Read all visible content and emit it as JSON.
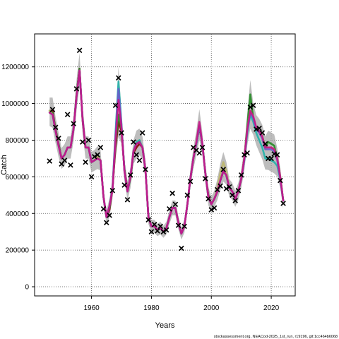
{
  "chart_data": {
    "type": "line",
    "title": "",
    "xlabel": "Years",
    "ylabel": "Catch",
    "xlim": [
      1941,
      2028
    ],
    "ylim": [
      -50000,
      1380000
    ],
    "x_ticks": [
      1960,
      1980,
      2000,
      2020
    ],
    "y_ticks": [
      0,
      200000,
      400000,
      600000,
      800000,
      1000000,
      1200000
    ],
    "x_tick_labels": [
      "1960",
      "1980",
      "2000",
      "2020"
    ],
    "y_tick_labels": [
      "0",
      "200000",
      "400000",
      "600000",
      "800000",
      "1000000",
      "1200000"
    ],
    "grid": "dotted",
    "source_note": "stockassessment.org, NEACod-2025_1st_run, r19196, git:1cc464b6068",
    "observed": {
      "marker": "x",
      "x": [
        1946,
        1947,
        1948,
        1949,
        1950,
        1951,
        1952,
        1953,
        1954,
        1955,
        1956,
        1957,
        1958,
        1959,
        1960,
        1961,
        1962,
        1963,
        1964,
        1965,
        1966,
        1967,
        1968,
        1969,
        1970,
        1971,
        1972,
        1973,
        1974,
        1975,
        1976,
        1977,
        1978,
        1979,
        1980,
        1981,
        1982,
        1983,
        1984,
        1985,
        1986,
        1987,
        1988,
        1989,
        1990,
        1991,
        1992,
        1993,
        1994,
        1995,
        1996,
        1997,
        1998,
        1999,
        2000,
        2001,
        2002,
        2003,
        2004,
        2005,
        2006,
        2007,
        2008,
        2009,
        2010,
        2011,
        2012,
        2013,
        2014,
        2015,
        2016,
        2017,
        2018,
        2019,
        2020,
        2021,
        2022,
        2023,
        2024
      ],
      "y": [
        686000,
        967000,
        870000,
        810000,
        670000,
        690000,
        940000,
        664000,
        890000,
        1080000,
        1290000,
        790000,
        680000,
        800000,
        600000,
        710000,
        720000,
        760000,
        425000,
        350000,
        390000,
        525000,
        990000,
        1140000,
        840000,
        555000,
        475000,
        610000,
        790000,
        720000,
        690000,
        840000,
        640000,
        365000,
        300000,
        340000,
        305000,
        330000,
        300000,
        310000,
        425000,
        510000,
        450000,
        335000,
        210000,
        330000,
        500000,
        575000,
        760000,
        745000,
        730000,
        760000,
        590000,
        480000,
        420000,
        430000,
        530000,
        550000,
        640000,
        535000,
        545000,
        500000,
        470000,
        525000,
        610000,
        720000,
        730000,
        980000,
        990000,
        860000,
        865000,
        840000,
        780000,
        700000,
        700000,
        725000,
        720000,
        580000,
        455000
      ]
    },
    "series": [
      {
        "color": "#8b0000",
        "values": [
          960000,
          960000,
          860000,
          780000,
          700000,
          720000,
          760000,
          760000,
          860000,
          1050000,
          1190000,
          910000,
          760000,
          760000,
          680000,
          690000,
          710000,
          690000,
          490000,
          380000,
          420000,
          530000,
          760000,
          900000,
          850000,
          640000,
          530000,
          590000,
          730000,
          760000,
          780000,
          760000,
          640000,
          380000,
          330000,
          330000,
          310000,
          320000,
          300000,
          320000,
          380000,
          430000,
          430000,
          350000,
          290000,
          330000,
          450000,
          590000,
          700000,
          780000,
          870000,
          780000,
          620000,
          500000,
          450000,
          480000,
          520000,
          580000,
          630000,
          610000,
          540000,
          520000,
          480000,
          520000,
          590000,
          700000,
          860000,
          960000,
          920000,
          860000,
          840000,
          820000,
          760000,
          760000,
          760000,
          750000,
          700000,
          600000,
          470000
        ]
      },
      {
        "color": "#228b22",
        "values": [
          960000,
          950000,
          860000,
          780000,
          700000,
          720000,
          760000,
          760000,
          860000,
          1050000,
          1190000,
          920000,
          760000,
          760000,
          680000,
          690000,
          710000,
          690000,
          490000,
          380000,
          430000,
          530000,
          780000,
          940000,
          860000,
          640000,
          520000,
          590000,
          740000,
          780000,
          790000,
          760000,
          640000,
          380000,
          330000,
          330000,
          310000,
          320000,
          300000,
          320000,
          380000,
          430000,
          430000,
          350000,
          290000,
          330000,
          450000,
          590000,
          700000,
          780000,
          880000,
          780000,
          620000,
          490000,
          450000,
          480000,
          520000,
          580000,
          630000,
          610000,
          540000,
          520000,
          480000,
          520000,
          590000,
          700000,
          880000,
          1050000,
          920000,
          860000,
          850000,
          820000,
          760000,
          790000,
          780000,
          770000,
          700000,
          600000,
          470000
        ]
      },
      {
        "color": "#bdb76b",
        "values": [
          960000,
          940000,
          850000,
          770000,
          700000,
          720000,
          760000,
          760000,
          860000,
          1040000,
          1180000,
          920000,
          760000,
          760000,
          680000,
          690000,
          710000,
          690000,
          490000,
          380000,
          440000,
          530000,
          820000,
          1060000,
          880000,
          630000,
          520000,
          600000,
          740000,
          790000,
          800000,
          760000,
          640000,
          380000,
          330000,
          330000,
          310000,
          320000,
          300000,
          320000,
          380000,
          430000,
          430000,
          350000,
          290000,
          330000,
          450000,
          590000,
          700000,
          780000,
          880000,
          780000,
          620000,
          490000,
          450000,
          480000,
          540000,
          620000,
          680000,
          630000,
          540000,
          520000,
          480000,
          520000,
          590000,
          700000,
          860000,
          960000,
          920000,
          860000,
          840000,
          820000,
          750000,
          760000,
          760000,
          750000,
          700000,
          600000,
          470000
        ]
      },
      {
        "color": "#20b2aa",
        "values": [
          950000,
          940000,
          850000,
          770000,
          700000,
          720000,
          760000,
          760000,
          860000,
          1040000,
          1180000,
          920000,
          760000,
          760000,
          680000,
          690000,
          700000,
          690000,
          490000,
          380000,
          440000,
          540000,
          840000,
          1120000,
          890000,
          630000,
          520000,
          600000,
          740000,
          790000,
          800000,
          760000,
          640000,
          380000,
          330000,
          330000,
          310000,
          320000,
          300000,
          320000,
          380000,
          430000,
          430000,
          350000,
          290000,
          330000,
          450000,
          590000,
          700000,
          780000,
          880000,
          780000,
          620000,
          490000,
          450000,
          480000,
          520000,
          580000,
          630000,
          610000,
          540000,
          520000,
          480000,
          520000,
          590000,
          690000,
          840000,
          940000,
          900000,
          840000,
          800000,
          760000,
          700000,
          700000,
          690000,
          680000,
          660000,
          590000,
          470000
        ]
      },
      {
        "color": "#6a5acd",
        "values": [
          950000,
          940000,
          850000,
          770000,
          700000,
          720000,
          760000,
          760000,
          860000,
          1040000,
          1180000,
          920000,
          760000,
          760000,
          680000,
          690000,
          700000,
          690000,
          490000,
          380000,
          440000,
          530000,
          820000,
          1080000,
          880000,
          630000,
          520000,
          600000,
          740000,
          780000,
          790000,
          760000,
          640000,
          380000,
          330000,
          330000,
          310000,
          320000,
          300000,
          320000,
          380000,
          430000,
          430000,
          350000,
          290000,
          330000,
          450000,
          590000,
          700000,
          780000,
          880000,
          780000,
          620000,
          490000,
          450000,
          480000,
          520000,
          580000,
          630000,
          610000,
          540000,
          520000,
          480000,
          520000,
          590000,
          690000,
          850000,
          950000,
          920000,
          860000,
          840000,
          810000,
          750000,
          750000,
          750000,
          740000,
          690000,
          590000,
          470000
        ]
      },
      {
        "color": "#c71585",
        "values": [
          950000,
          940000,
          850000,
          770000,
          700000,
          720000,
          760000,
          760000,
          860000,
          1040000,
          1180000,
          920000,
          760000,
          760000,
          680000,
          690000,
          700000,
          690000,
          490000,
          380000,
          440000,
          530000,
          800000,
          1020000,
          870000,
          630000,
          520000,
          600000,
          740000,
          780000,
          790000,
          760000,
          640000,
          380000,
          330000,
          330000,
          310000,
          320000,
          300000,
          320000,
          380000,
          430000,
          430000,
          350000,
          290000,
          330000,
          450000,
          590000,
          700000,
          790000,
          900000,
          780000,
          620000,
          490000,
          450000,
          480000,
          520000,
          580000,
          630000,
          610000,
          540000,
          520000,
          480000,
          520000,
          590000,
          700000,
          860000,
          960000,
          930000,
          870000,
          850000,
          820000,
          760000,
          760000,
          760000,
          750000,
          700000,
          600000,
          470000
        ]
      }
    ]
  }
}
